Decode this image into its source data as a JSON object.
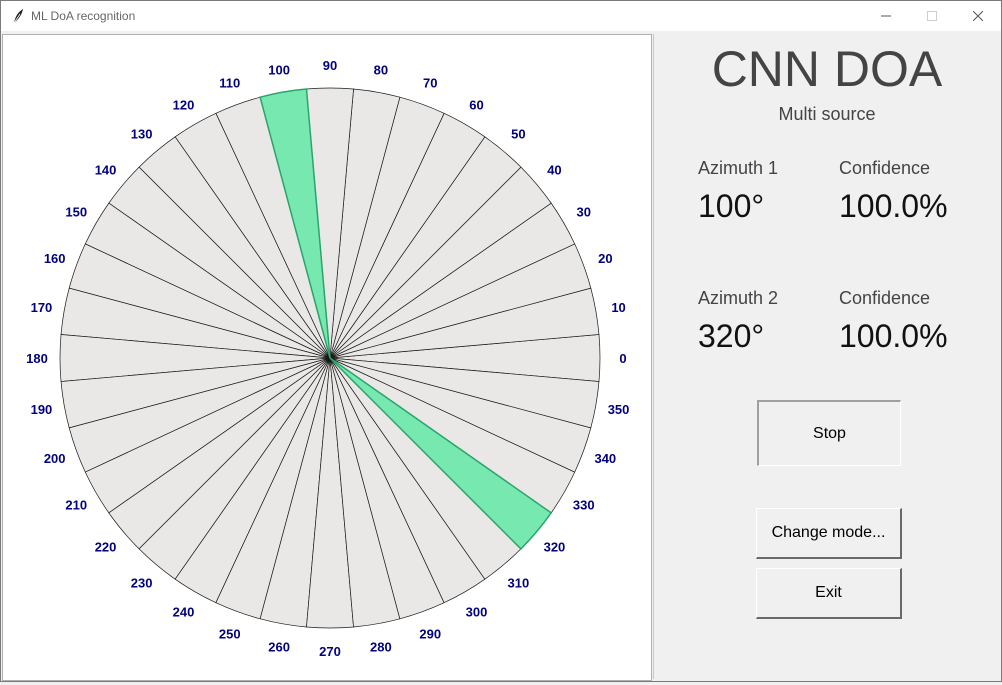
{
  "window": {
    "title": "ML DoA recognition",
    "controls": {
      "minimize": "—",
      "maximize": "☐",
      "close": "✕"
    }
  },
  "polar_plot": {
    "angle_step_deg": 10,
    "labels": [
      "0",
      "10",
      "20",
      "30",
      "40",
      "50",
      "60",
      "70",
      "80",
      "90",
      "100",
      "110",
      "120",
      "130",
      "140",
      "150",
      "160",
      "170",
      "180",
      "190",
      "200",
      "210",
      "220",
      "230",
      "240",
      "250",
      "260",
      "270",
      "280",
      "290",
      "300",
      "310",
      "320",
      "330",
      "340",
      "350"
    ],
    "active_azimuths_deg": [
      100,
      320
    ],
    "sector_fill": "#e9e8e6",
    "active_fill": "#77e8b0",
    "active_stroke": "#2aa56a",
    "label_color": "#000080"
  },
  "panel": {
    "heading": "CNN DOA",
    "mode": "Multi source",
    "sources": [
      {
        "az_label": "Azimuth 1",
        "az_value": "100°",
        "conf_label": "Confidence",
        "conf_value": "100.0%"
      },
      {
        "az_label": "Azimuth 2",
        "az_value": "320°",
        "conf_label": "Confidence",
        "conf_value": "100.0%"
      }
    ],
    "buttons": {
      "stop": "Stop",
      "change_mode": "Change mode...",
      "exit": "Exit"
    }
  }
}
